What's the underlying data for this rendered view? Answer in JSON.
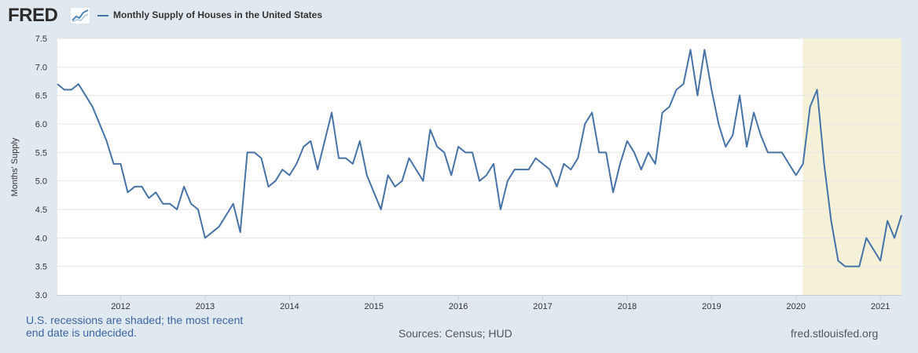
{
  "header": {
    "logo_text": "FRED",
    "logo_icon": "chart-line-icon",
    "legend_label": "Monthly Supply of Houses in the United States"
  },
  "footer": {
    "recession_note": "U.S. recessions are shaded; the most recent end date is undecided.",
    "sources": "Sources: Census; HUD",
    "site": "fred.stlouisfed.org"
  },
  "colors": {
    "background": "#e1e9f0",
    "plot_background": "#ffffff",
    "series": "#4572a7",
    "recession_shade": "#f4f1d8",
    "grid": "#e6e6e6"
  },
  "chart_data": {
    "type": "line",
    "title": "",
    "xlabel": "",
    "ylabel": "Months' Supply",
    "ylim": [
      3.0,
      7.5
    ],
    "yticks": [
      "3.0",
      "3.5",
      "4.0",
      "4.5",
      "5.0",
      "5.5",
      "6.0",
      "6.5",
      "7.0",
      "7.5"
    ],
    "xticks": [
      "2012",
      "2013",
      "2014",
      "2015",
      "2016",
      "2017",
      "2018",
      "2019",
      "2020",
      "2021"
    ],
    "x_start": "2011-04",
    "x_end": "2021-04",
    "grid": true,
    "recession_shading": [
      {
        "start": "2020-02",
        "end": "2021-04"
      }
    ],
    "series": [
      {
        "name": "Monthly Supply of Houses in the United States",
        "x": [
          "2011-04",
          "2011-05",
          "2011-06",
          "2011-07",
          "2011-08",
          "2011-09",
          "2011-10",
          "2011-11",
          "2011-12",
          "2012-01",
          "2012-02",
          "2012-03",
          "2012-04",
          "2012-05",
          "2012-06",
          "2012-07",
          "2012-08",
          "2012-09",
          "2012-10",
          "2012-11",
          "2012-12",
          "2013-01",
          "2013-02",
          "2013-03",
          "2013-04",
          "2013-05",
          "2013-06",
          "2013-07",
          "2013-08",
          "2013-09",
          "2013-10",
          "2013-11",
          "2013-12",
          "2014-01",
          "2014-02",
          "2014-03",
          "2014-04",
          "2014-05",
          "2014-06",
          "2014-07",
          "2014-08",
          "2014-09",
          "2014-10",
          "2014-11",
          "2014-12",
          "2015-01",
          "2015-02",
          "2015-03",
          "2015-04",
          "2015-05",
          "2015-06",
          "2015-07",
          "2015-08",
          "2015-09",
          "2015-10",
          "2015-11",
          "2015-12",
          "2016-01",
          "2016-02",
          "2016-03",
          "2016-04",
          "2016-05",
          "2016-06",
          "2016-07",
          "2016-08",
          "2016-09",
          "2016-10",
          "2016-11",
          "2016-12",
          "2017-01",
          "2017-02",
          "2017-03",
          "2017-04",
          "2017-05",
          "2017-06",
          "2017-07",
          "2017-08",
          "2017-09",
          "2017-10",
          "2017-11",
          "2017-12",
          "2018-01",
          "2018-02",
          "2018-03",
          "2018-04",
          "2018-05",
          "2018-06",
          "2018-07",
          "2018-08",
          "2018-09",
          "2018-10",
          "2018-11",
          "2018-12",
          "2019-01",
          "2019-02",
          "2019-03",
          "2019-04",
          "2019-05",
          "2019-06",
          "2019-07",
          "2019-08",
          "2019-09",
          "2019-10",
          "2019-11",
          "2019-12",
          "2020-01",
          "2020-02",
          "2020-03",
          "2020-04",
          "2020-05",
          "2020-06",
          "2020-07",
          "2020-08",
          "2020-09",
          "2020-10",
          "2020-11",
          "2020-12",
          "2021-01",
          "2021-02",
          "2021-03",
          "2021-04"
        ],
        "values": [
          6.7,
          6.6,
          6.6,
          6.7,
          6.5,
          6.3,
          6.0,
          5.7,
          5.3,
          5.3,
          4.8,
          4.9,
          4.9,
          4.7,
          4.8,
          4.6,
          4.6,
          4.5,
          4.9,
          4.6,
          4.5,
          4.0,
          4.1,
          4.2,
          4.4,
          4.6,
          4.1,
          5.5,
          5.5,
          5.4,
          4.9,
          5.0,
          5.2,
          5.1,
          5.3,
          5.6,
          5.7,
          5.2,
          5.7,
          6.2,
          5.4,
          5.4,
          5.3,
          5.7,
          5.1,
          4.8,
          4.5,
          5.1,
          4.9,
          5.0,
          5.4,
          5.2,
          5.0,
          5.9,
          5.6,
          5.5,
          5.1,
          5.6,
          5.5,
          5.5,
          5.0,
          5.1,
          5.3,
          4.5,
          5.0,
          5.2,
          5.2,
          5.2,
          5.4,
          5.3,
          5.2,
          4.9,
          5.3,
          5.2,
          5.4,
          6.0,
          6.2,
          5.5,
          5.5,
          4.8,
          5.3,
          5.7,
          5.5,
          5.2,
          5.5,
          5.3,
          6.2,
          6.3,
          6.6,
          6.7,
          7.3,
          6.5,
          7.3,
          6.6,
          6.0,
          5.6,
          5.8,
          6.5,
          5.6,
          6.2,
          5.8,
          5.5,
          5.5,
          5.5,
          5.3,
          5.1,
          5.3,
          6.3,
          6.6,
          5.3,
          4.3,
          3.6,
          3.5,
          3.5,
          3.5,
          4.0,
          3.8,
          3.6,
          4.3,
          4.0,
          4.4
        ]
      }
    ]
  }
}
